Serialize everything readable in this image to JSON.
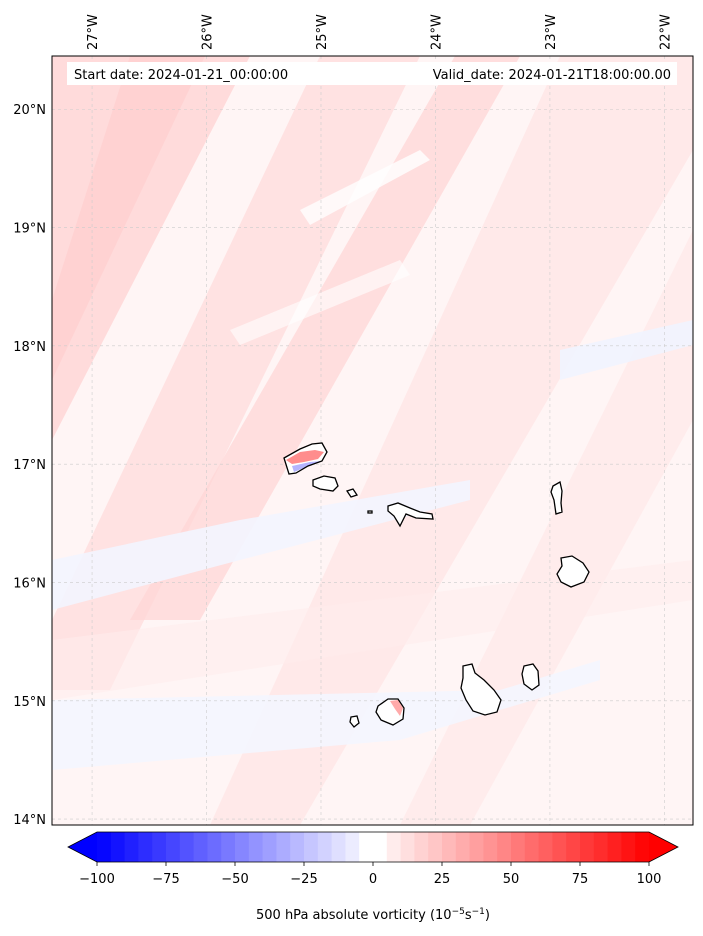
{
  "header": {
    "start_date": "Start date: 2024-01-21_00:00:00",
    "valid_date": "Valid_date: 2024-01-21T18:00:00.00"
  },
  "axes": {
    "lon_ticks": [
      {
        "value": -27,
        "label": "27°W"
      },
      {
        "value": -26,
        "label": "26°W"
      },
      {
        "value": -25,
        "label": "25°W"
      },
      {
        "value": -24,
        "label": "24°W"
      },
      {
        "value": -23,
        "label": "23°W"
      },
      {
        "value": -22,
        "label": "22°W"
      }
    ],
    "lat_ticks": [
      {
        "value": 20,
        "label": "20°N"
      },
      {
        "value": 19,
        "label": "19°N"
      },
      {
        "value": 18,
        "label": "18°N"
      },
      {
        "value": 17,
        "label": "17°N"
      },
      {
        "value": 16,
        "label": "16°N"
      },
      {
        "value": 15,
        "label": "15°N"
      },
      {
        "value": 14,
        "label": "14°N"
      }
    ],
    "lon_range": [
      -27.35,
      -21.75
    ],
    "lat_range": [
      13.95,
      20.45
    ]
  },
  "colorbar": {
    "min": -100,
    "max": 100,
    "ticks": [
      {
        "value": -100,
        "label": "−100"
      },
      {
        "value": -75,
        "label": "−75"
      },
      {
        "value": -50,
        "label": "−50"
      },
      {
        "value": -25,
        "label": "−25"
      },
      {
        "value": 0,
        "label": "0"
      },
      {
        "value": 25,
        "label": "25"
      },
      {
        "value": 50,
        "label": "50"
      },
      {
        "value": 75,
        "label": "75"
      },
      {
        "value": 100,
        "label": "100"
      }
    ],
    "label_main": "500 hPa absolute vorticity (10",
    "label_exp1": "−5",
    "label_mid": "s",
    "label_exp2": "−1",
    "label_end": ")",
    "low_color": "#0000ff",
    "mid_color": "#ffffff",
    "high_color": "#ff0000"
  },
  "colors": {
    "field_base": "#fff5f5",
    "band_light": "#ffe4e4",
    "band_mid": "#ffd8d8",
    "band_blue": "#f3f5ff",
    "coast": "#000000",
    "grid": "#cccccc"
  }
}
